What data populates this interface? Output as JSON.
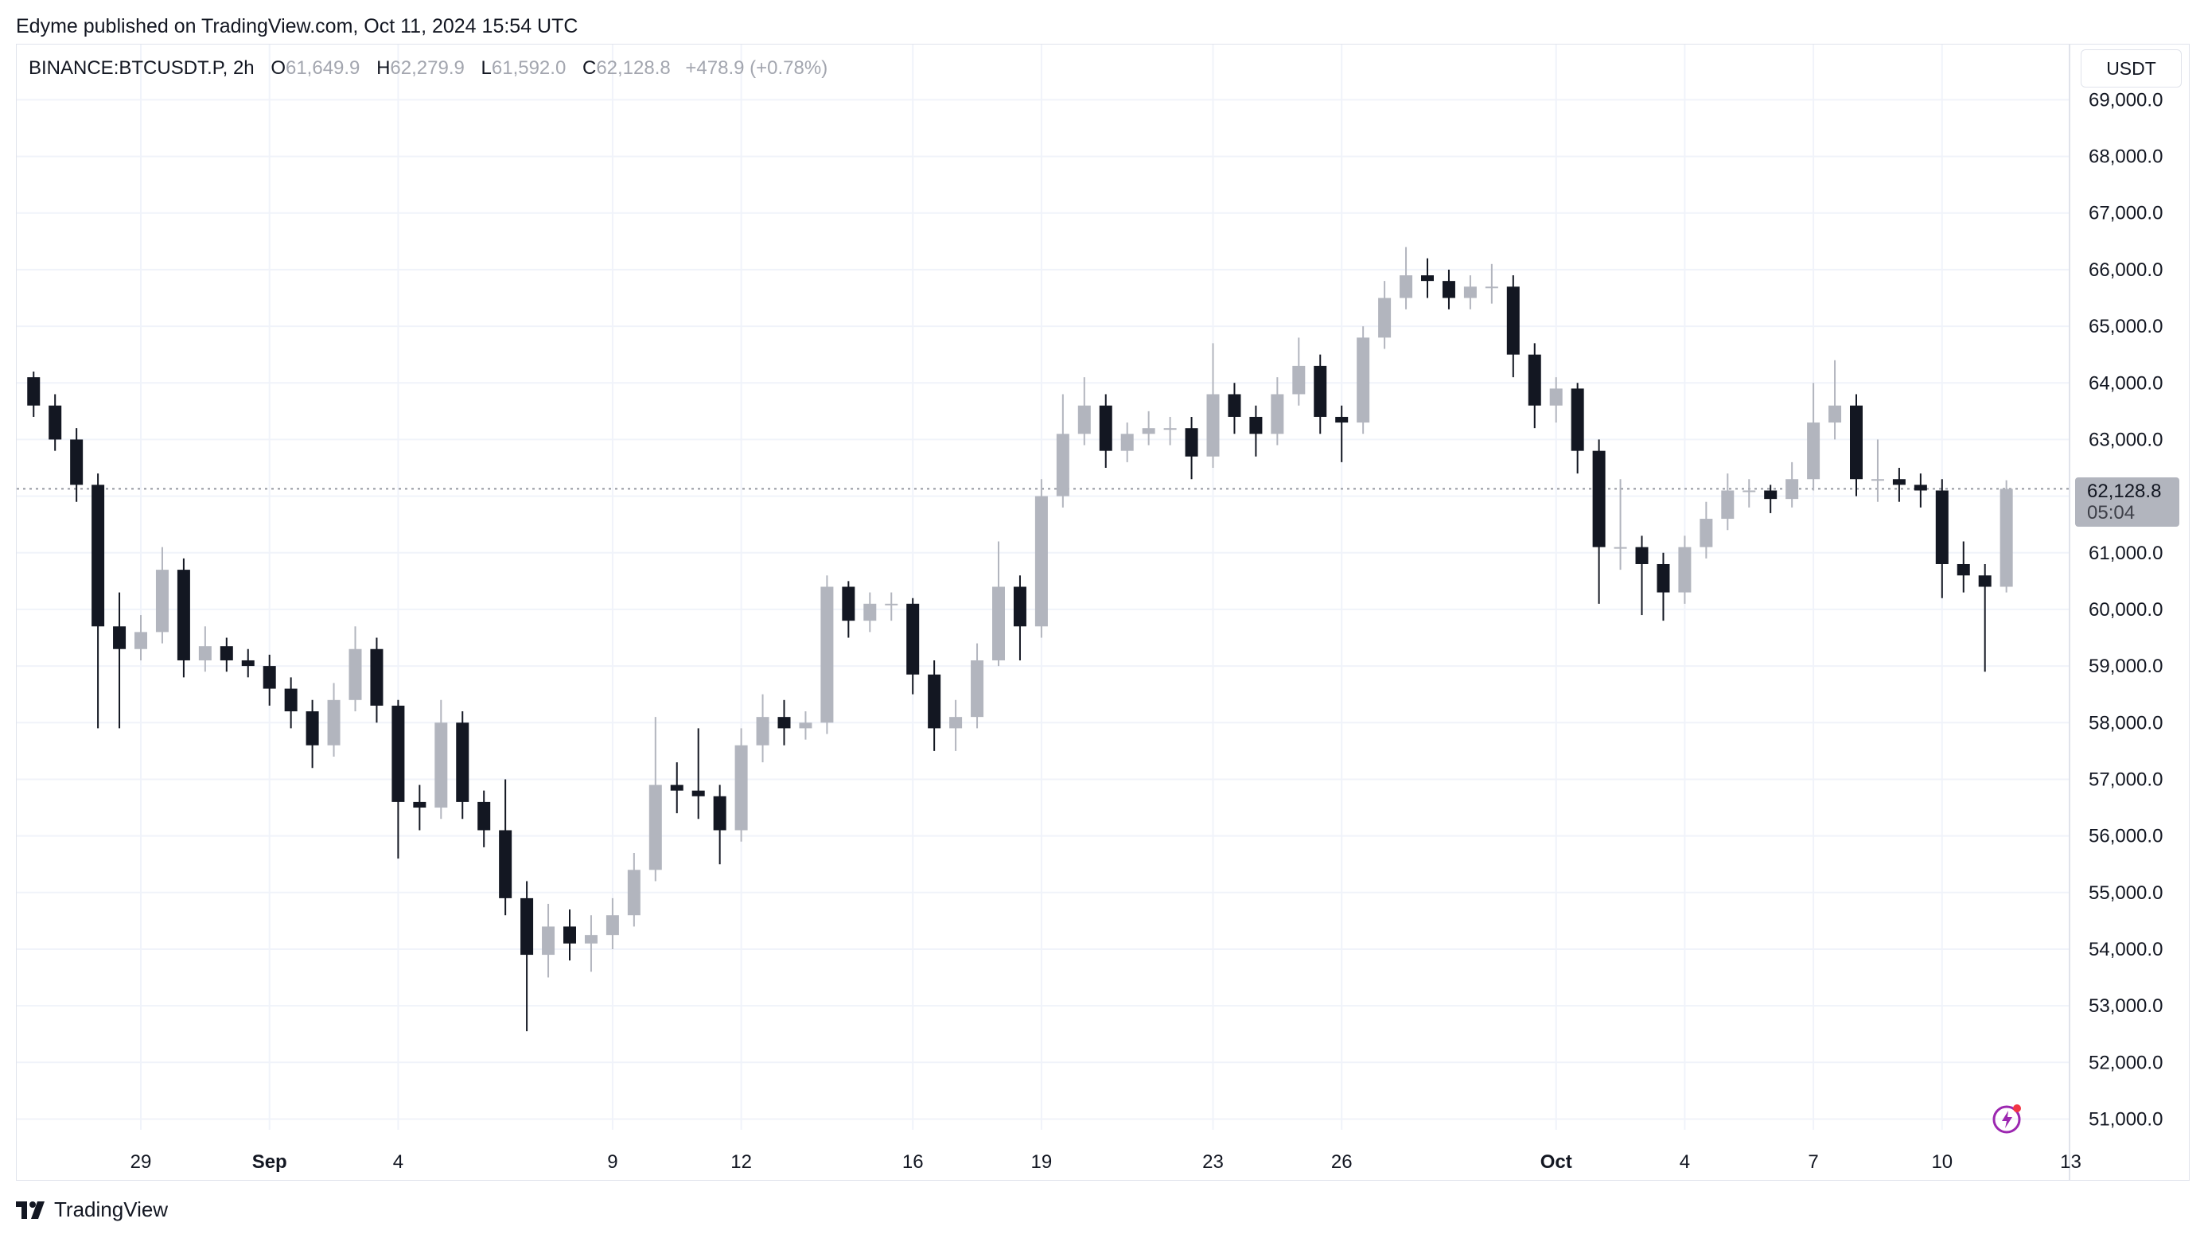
{
  "header": {
    "published": "Edyme published on TradingView.com, Oct 11, 2024 15:54 UTC"
  },
  "legend": {
    "symbol": "BINANCE:BTCUSDT.P, 2h",
    "o_label": "O",
    "o": "61,649.9",
    "h_label": "H",
    "h": "62,279.9",
    "l_label": "L",
    "l": "61,592.0",
    "c_label": "C",
    "c": "62,128.8",
    "change": "+478.9 (+0.78%)"
  },
  "currency_button": "USDT",
  "current_price": {
    "value": "62,128.8",
    "countdown": "05:04",
    "price": 62128.8
  },
  "footer": {
    "brand": "TradingView"
  },
  "colors": {
    "up": "#b2b5be",
    "down": "#131722",
    "grid": "#f0f3fa",
    "price_label_bg": "#b2b5be"
  },
  "chart_data": {
    "type": "candlestick",
    "symbol": "BINANCE:BTCUSDT.P",
    "interval_shown": "2h",
    "candle_start": "2024-08-26T12:00",
    "candle_step_hours": 12,
    "ylim": [
      50500,
      69500
    ],
    "grid": true,
    "y_ticks": [
      {
        "value": 69000,
        "label": "69,000.0"
      },
      {
        "value": 68000,
        "label": "68,000.0"
      },
      {
        "value": 67000,
        "label": "67,000.0"
      },
      {
        "value": 66000,
        "label": "66,000.0"
      },
      {
        "value": 65000,
        "label": "65,000.0"
      },
      {
        "value": 64000,
        "label": "64,000.0"
      },
      {
        "value": 63000,
        "label": "63,000.0"
      },
      {
        "value": 61000,
        "label": "61,000.0"
      },
      {
        "value": 60000,
        "label": "60,000.0"
      },
      {
        "value": 59000,
        "label": "59,000.0"
      },
      {
        "value": 58000,
        "label": "58,000.0"
      },
      {
        "value": 57000,
        "label": "57,000.0"
      },
      {
        "value": 56000,
        "label": "56,000.0"
      },
      {
        "value": 55000,
        "label": "55,000.0"
      },
      {
        "value": 54000,
        "label": "54,000.0"
      },
      {
        "value": 53000,
        "label": "53,000.0"
      },
      {
        "value": 52000,
        "label": "52,000.0"
      },
      {
        "value": 51000,
        "label": "51,000.0"
      }
    ],
    "x_ticks": [
      {
        "date": "2024-08-29",
        "label": "29",
        "bold": false
      },
      {
        "date": "2024-09-01",
        "label": "Sep",
        "bold": true
      },
      {
        "date": "2024-09-04",
        "label": "4",
        "bold": false
      },
      {
        "date": "2024-09-09",
        "label": "9",
        "bold": false
      },
      {
        "date": "2024-09-12",
        "label": "12",
        "bold": false
      },
      {
        "date": "2024-09-16",
        "label": "16",
        "bold": false
      },
      {
        "date": "2024-09-19",
        "label": "19",
        "bold": false
      },
      {
        "date": "2024-09-23",
        "label": "23",
        "bold": false
      },
      {
        "date": "2024-09-26",
        "label": "26",
        "bold": false
      },
      {
        "date": "2024-10-01",
        "label": "Oct",
        "bold": true
      },
      {
        "date": "2024-10-04",
        "label": "4",
        "bold": false
      },
      {
        "date": "2024-10-07",
        "label": "7",
        "bold": false
      },
      {
        "date": "2024-10-10",
        "label": "10",
        "bold": false
      },
      {
        "date": "2024-10-13",
        "label": "13",
        "bold": false
      }
    ],
    "ohlc": [
      [
        64100,
        64200,
        63400,
        63600
      ],
      [
        63600,
        63800,
        62800,
        63000
      ],
      [
        63000,
        63200,
        61900,
        62200
      ],
      [
        62200,
        62400,
        57900,
        59700
      ],
      [
        59700,
        60300,
        57900,
        59300
      ],
      [
        59300,
        59900,
        59100,
        59600
      ],
      [
        59600,
        61100,
        59400,
        60700
      ],
      [
        60700,
        60900,
        58800,
        59100
      ],
      [
        59100,
        59700,
        58900,
        59350
      ],
      [
        59350,
        59500,
        58900,
        59100
      ],
      [
        59100,
        59300,
        58800,
        59000
      ],
      [
        59000,
        59200,
        58300,
        58600
      ],
      [
        58600,
        58800,
        57900,
        58200
      ],
      [
        58200,
        58400,
        57200,
        57600
      ],
      [
        57600,
        58700,
        57400,
        58400
      ],
      [
        58400,
        59700,
        58200,
        59300
      ],
      [
        59300,
        59500,
        58000,
        58300
      ],
      [
        58300,
        58400,
        55600,
        56600
      ],
      [
        56600,
        56900,
        56100,
        56500
      ],
      [
        56500,
        58400,
        56300,
        58000
      ],
      [
        58000,
        58200,
        56300,
        56600
      ],
      [
        56600,
        56800,
        55800,
        56100
      ],
      [
        56100,
        57000,
        54600,
        54900
      ],
      [
        54900,
        55200,
        52550,
        53900
      ],
      [
        53900,
        54800,
        53500,
        54400
      ],
      [
        54400,
        54700,
        53800,
        54100
      ],
      [
        54100,
        54600,
        53600,
        54250
      ],
      [
        54250,
        54900,
        54000,
        54600
      ],
      [
        54600,
        55700,
        54400,
        55400
      ],
      [
        55400,
        58100,
        55200,
        56900
      ],
      [
        56900,
        57300,
        56400,
        56800
      ],
      [
        56800,
        57900,
        56300,
        56700
      ],
      [
        56700,
        56900,
        55500,
        56100
      ],
      [
        56100,
        57900,
        55900,
        57600
      ],
      [
        57600,
        58500,
        57300,
        58100
      ],
      [
        58100,
        58400,
        57600,
        57900
      ],
      [
        57900,
        58200,
        57700,
        58000
      ],
      [
        58000,
        60600,
        57800,
        60400
      ],
      [
        60400,
        60500,
        59500,
        59800
      ],
      [
        59800,
        60300,
        59600,
        60100
      ],
      [
        60100,
        60300,
        59800,
        60100
      ],
      [
        60100,
        60200,
        58500,
        58850
      ],
      [
        58850,
        59100,
        57500,
        57900
      ],
      [
        57900,
        58400,
        57500,
        58100
      ],
      [
        58100,
        59400,
        57900,
        59100
      ],
      [
        59100,
        61200,
        59000,
        60400
      ],
      [
        60400,
        60600,
        59100,
        59700
      ],
      [
        59700,
        62300,
        59500,
        62000
      ],
      [
        62000,
        63800,
        61800,
        63100
      ],
      [
        63100,
        64100,
        62900,
        63600
      ],
      [
        63600,
        63800,
        62500,
        62800
      ],
      [
        62800,
        63300,
        62600,
        63100
      ],
      [
        63100,
        63500,
        62900,
        63200
      ],
      [
        63200,
        63400,
        62900,
        63200
      ],
      [
        63200,
        63400,
        62300,
        62700
      ],
      [
        62700,
        64700,
        62500,
        63800
      ],
      [
        63800,
        64000,
        63100,
        63400
      ],
      [
        63400,
        63600,
        62700,
        63100
      ],
      [
        63100,
        64100,
        62900,
        63800
      ],
      [
        63800,
        64800,
        63600,
        64300
      ],
      [
        64300,
        64500,
        63100,
        63400
      ],
      [
        63400,
        63600,
        62600,
        63300
      ],
      [
        63300,
        65000,
        63100,
        64800
      ],
      [
        64800,
        65800,
        64600,
        65500
      ],
      [
        65500,
        66400,
        65300,
        65900
      ],
      [
        65900,
        66200,
        65500,
        65800
      ],
      [
        65800,
        66000,
        65300,
        65500
      ],
      [
        65500,
        65900,
        65300,
        65700
      ],
      [
        65700,
        66100,
        65400,
        65700
      ],
      [
        65700,
        65900,
        64100,
        64500
      ],
      [
        64500,
        64700,
        63200,
        63600
      ],
      [
        63600,
        64100,
        63300,
        63900
      ],
      [
        63900,
        64000,
        62400,
        62800
      ],
      [
        62800,
        63000,
        60100,
        61100
      ],
      [
        61100,
        62300,
        60700,
        61100
      ],
      [
        61100,
        61300,
        59900,
        60800
      ],
      [
        60800,
        61000,
        59800,
        60300
      ],
      [
        60300,
        61300,
        60100,
        61100
      ],
      [
        61100,
        61900,
        60900,
        61600
      ],
      [
        61600,
        62400,
        61400,
        62100
      ],
      [
        62100,
        62300,
        61800,
        62100
      ],
      [
        62100,
        62200,
        61700,
        61950
      ],
      [
        61950,
        62600,
        61800,
        62300
      ],
      [
        62300,
        64000,
        62100,
        63300
      ],
      [
        63300,
        64400,
        63000,
        63600
      ],
      [
        63600,
        63800,
        62000,
        62300
      ],
      [
        62300,
        63000,
        61900,
        62300
      ],
      [
        62300,
        62500,
        61900,
        62200
      ],
      [
        62200,
        62400,
        61800,
        62100
      ],
      [
        62100,
        62300,
        60200,
        60800
      ],
      [
        60800,
        61200,
        60300,
        60600
      ],
      [
        60600,
        60800,
        58900,
        60400
      ],
      [
        60400,
        62279.9,
        60300,
        62128.8
      ]
    ]
  }
}
